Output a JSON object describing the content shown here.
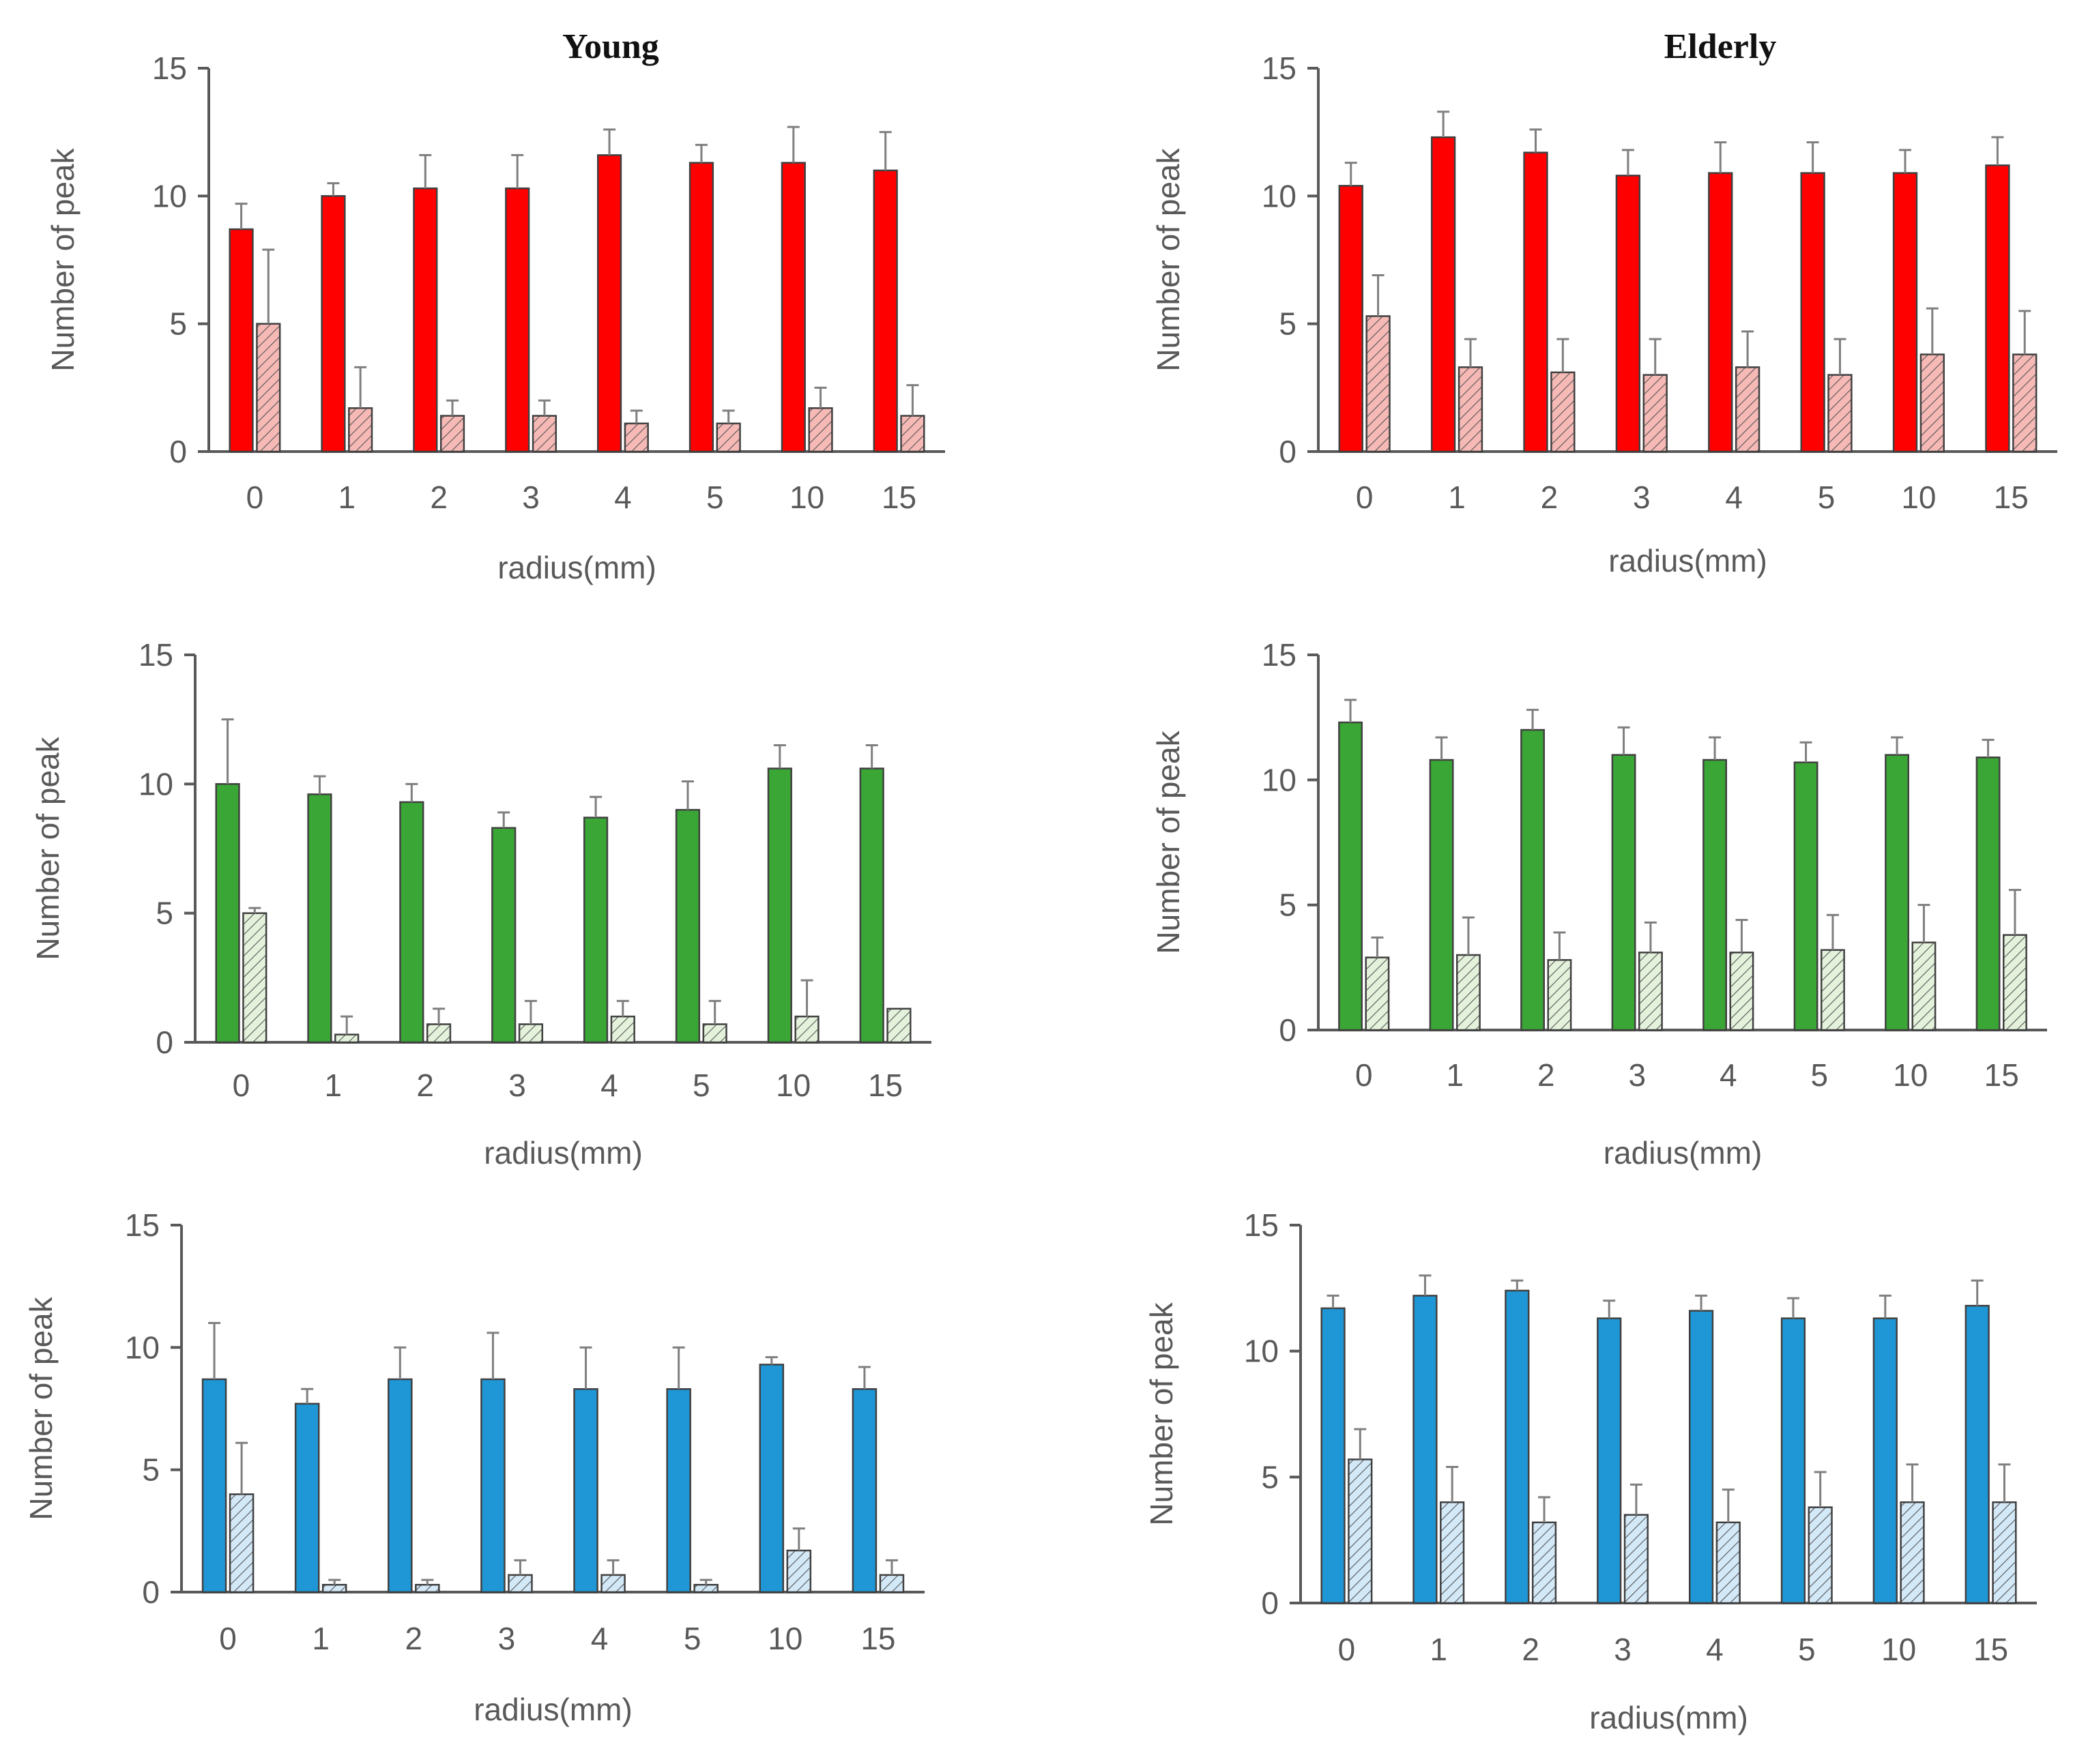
{
  "colors": {
    "red": "#ff0000",
    "green": "#3aa635",
    "blue": "#1f97d6",
    "red_light": "#f6b9b6",
    "green_light": "#e4f2dc",
    "blue_light": "#d3e9f8",
    "axis": "#595959",
    "error_bar": "#7f7f7f"
  },
  "chart_data": [
    {
      "type": "bar",
      "title": "Young",
      "xlabel": "radius(mm)",
      "ylabel": "Number of peak",
      "ylim": [
        0,
        15
      ],
      "yticks": [
        "0",
        "5",
        "10",
        "15"
      ],
      "categories": [
        "0",
        "1",
        "2",
        "3",
        "4",
        "5",
        "10",
        "15"
      ],
      "series": [
        {
          "name": "solid",
          "color": "red",
          "pattern": "solid",
          "values": [
            8.7,
            10.0,
            10.3,
            10.3,
            11.6,
            11.3,
            11.3,
            11.0
          ],
          "errors": [
            1.0,
            0.5,
            1.3,
            1.3,
            1.0,
            0.7,
            1.4,
            1.5
          ]
        },
        {
          "name": "hatched",
          "color": "red_light",
          "pattern": "hatch",
          "values": [
            5.0,
            1.7,
            1.4,
            1.4,
            1.1,
            1.1,
            1.7,
            1.4
          ],
          "errors": [
            2.9,
            1.6,
            0.6,
            0.6,
            0.5,
            0.5,
            0.8,
            1.2
          ]
        }
      ]
    },
    {
      "type": "bar",
      "title": "Elderly",
      "xlabel": "radius(mm)",
      "ylabel": "Number of peak",
      "ylim": [
        0,
        15
      ],
      "yticks": [
        "0",
        "5",
        "10",
        "15"
      ],
      "categories": [
        "0",
        "1",
        "2",
        "3",
        "4",
        "5",
        "10",
        "15"
      ],
      "series": [
        {
          "name": "solid",
          "color": "red",
          "pattern": "solid",
          "values": [
            10.4,
            12.3,
            11.7,
            10.8,
            10.9,
            10.9,
            10.9,
            11.2
          ],
          "errors": [
            0.9,
            1.0,
            0.9,
            1.0,
            1.2,
            1.2,
            0.9,
            1.1
          ]
        },
        {
          "name": "hatched",
          "color": "red_light",
          "pattern": "hatch",
          "values": [
            5.3,
            3.3,
            3.1,
            3.0,
            3.3,
            3.0,
            3.8,
            3.8
          ],
          "errors": [
            1.6,
            1.1,
            1.3,
            1.4,
            1.4,
            1.4,
            1.8,
            1.7
          ]
        }
      ]
    },
    {
      "type": "bar",
      "title": "",
      "xlabel": "radius(mm)",
      "ylabel": "Number of peak",
      "ylim": [
        0,
        15
      ],
      "yticks": [
        "0",
        "5",
        "10",
        "15"
      ],
      "categories": [
        "0",
        "1",
        "2",
        "3",
        "4",
        "5",
        "10",
        "15"
      ],
      "series": [
        {
          "name": "solid",
          "color": "green",
          "pattern": "solid",
          "values": [
            10.0,
            9.6,
            9.3,
            8.3,
            8.7,
            9.0,
            10.6,
            10.6
          ],
          "errors": [
            2.5,
            0.7,
            0.7,
            0.6,
            0.8,
            1.1,
            0.9,
            0.9
          ]
        },
        {
          "name": "hatched",
          "color": "green_light",
          "pattern": "hatch",
          "values": [
            5.0,
            0.3,
            0.7,
            0.7,
            1.0,
            0.7,
            1.0,
            1.3
          ],
          "errors": [
            0.2,
            0.7,
            0.6,
            0.9,
            0.6,
            0.9,
            1.4,
            0.0
          ]
        }
      ]
    },
    {
      "type": "bar",
      "title": "",
      "xlabel": "radius(mm)",
      "ylabel": "Number of peak",
      "ylim": [
        0,
        15
      ],
      "yticks": [
        "0",
        "5",
        "10",
        "15"
      ],
      "categories": [
        "0",
        "1",
        "2",
        "3",
        "4",
        "5",
        "10",
        "15"
      ],
      "series": [
        {
          "name": "solid",
          "color": "green",
          "pattern": "solid",
          "values": [
            12.3,
            10.8,
            12.0,
            11.0,
            10.8,
            10.7,
            11.0,
            10.9
          ],
          "errors": [
            0.9,
            0.9,
            0.8,
            1.1,
            0.9,
            0.8,
            0.7,
            0.7
          ]
        },
        {
          "name": "hatched",
          "color": "green_light",
          "pattern": "hatch",
          "values": [
            2.9,
            3.0,
            2.8,
            3.1,
            3.1,
            3.2,
            3.5,
            3.8
          ],
          "errors": [
            0.8,
            1.5,
            1.1,
            1.2,
            1.3,
            1.4,
            1.5,
            1.8
          ]
        }
      ]
    },
    {
      "type": "bar",
      "title": "",
      "xlabel": "radius(mm)",
      "ylabel": "Number of peak",
      "ylim": [
        0,
        15
      ],
      "yticks": [
        "0",
        "5",
        "10",
        "15"
      ],
      "categories": [
        "0",
        "1",
        "2",
        "3",
        "4",
        "5",
        "10",
        "15"
      ],
      "series": [
        {
          "name": "solid",
          "color": "blue",
          "pattern": "solid",
          "values": [
            8.7,
            7.7,
            8.7,
            8.7,
            8.3,
            8.3,
            9.3,
            8.3
          ],
          "errors": [
            2.3,
            0.6,
            1.3,
            1.9,
            1.7,
            1.7,
            0.3,
            0.9
          ]
        },
        {
          "name": "hatched",
          "color": "blue_light",
          "pattern": "hatch",
          "values": [
            4.0,
            0.3,
            0.3,
            0.7,
            0.7,
            0.3,
            1.7,
            0.7
          ],
          "errors": [
            2.1,
            0.2,
            0.2,
            0.6,
            0.6,
            0.2,
            0.9,
            0.6
          ]
        }
      ]
    },
    {
      "type": "bar",
      "title": "",
      "xlabel": "radius(mm)",
      "ylabel": "Number of peak",
      "ylim": [
        0,
        15
      ],
      "yticks": [
        "0",
        "5",
        "10",
        "15"
      ],
      "categories": [
        "0",
        "1",
        "2",
        "3",
        "4",
        "5",
        "10",
        "15"
      ],
      "series": [
        {
          "name": "solid",
          "color": "blue",
          "pattern": "solid",
          "values": [
            11.7,
            12.2,
            12.4,
            11.3,
            11.6,
            11.3,
            11.3,
            11.8
          ],
          "errors": [
            0.5,
            0.8,
            0.4,
            0.7,
            0.6,
            0.8,
            0.9,
            1.0
          ]
        },
        {
          "name": "hatched",
          "color": "blue_light",
          "pattern": "hatch",
          "values": [
            5.7,
            4.0,
            3.2,
            3.5,
            3.2,
            3.8,
            4.0,
            4.0
          ],
          "errors": [
            1.2,
            1.4,
            1.0,
            1.2,
            1.3,
            1.4,
            1.5,
            1.5
          ]
        }
      ]
    }
  ]
}
